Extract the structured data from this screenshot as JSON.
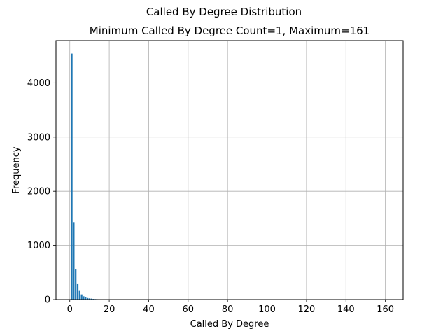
{
  "page": {
    "suptitle": "Called By Degree Distribution"
  },
  "chart_data": {
    "type": "bar",
    "title": "Minimum Called By Degree Count=1, Maximum=161",
    "xlabel": "Called By Degree",
    "ylabel": "Frequency",
    "xlim": [
      -7,
      169
    ],
    "ylim": [
      0,
      4780
    ],
    "xticks": [
      0,
      20,
      40,
      60,
      80,
      100,
      120,
      140,
      160
    ],
    "yticks": [
      0,
      1000,
      2000,
      3000,
      4000
    ],
    "grid": true,
    "bar_color": "#1f77b4",
    "bin_width": 0.8,
    "bins": [
      {
        "x": 1,
        "y": 4540
      },
      {
        "x": 2,
        "y": 1430
      },
      {
        "x": 3,
        "y": 555
      },
      {
        "x": 4,
        "y": 285
      },
      {
        "x": 5,
        "y": 160
      },
      {
        "x": 6,
        "y": 95
      },
      {
        "x": 7,
        "y": 60
      },
      {
        "x": 8,
        "y": 40
      },
      {
        "x": 9,
        "y": 28
      },
      {
        "x": 10,
        "y": 22
      },
      {
        "x": 11,
        "y": 18
      },
      {
        "x": 12,
        "y": 12
      },
      {
        "x": 13,
        "y": 9
      },
      {
        "x": 14,
        "y": 7
      },
      {
        "x": 15,
        "y": 5
      },
      {
        "x": 16,
        "y": 4
      },
      {
        "x": 17,
        "y": 3
      },
      {
        "x": 18,
        "y": 3
      },
      {
        "x": 19,
        "y": 2
      },
      {
        "x": 20,
        "y": 2
      },
      {
        "x": 22,
        "y": 2
      },
      {
        "x": 24,
        "y": 1
      },
      {
        "x": 26,
        "y": 1
      },
      {
        "x": 29,
        "y": 1
      },
      {
        "x": 33,
        "y": 1
      },
      {
        "x": 40,
        "y": 1
      },
      {
        "x": 52,
        "y": 1
      },
      {
        "x": 161,
        "y": 1
      }
    ]
  }
}
